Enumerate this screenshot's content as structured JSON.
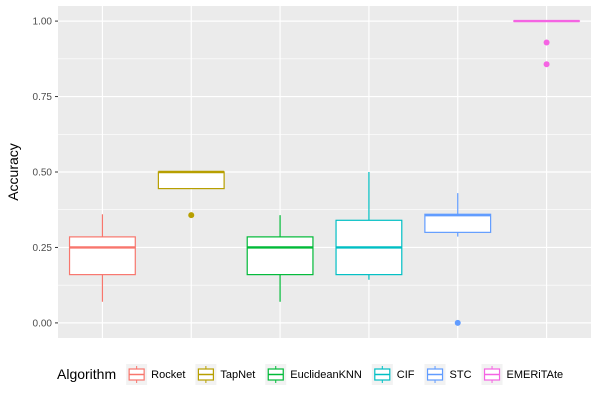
{
  "chart_data": {
    "type": "box",
    "title": "",
    "xlabel": "",
    "ylabel": "Accuracy",
    "ylim": [
      -0.05,
      1.05
    ],
    "yticks": [
      0.0,
      0.25,
      0.5,
      0.75,
      1.0
    ],
    "ytick_labels": [
      "0.00",
      "0.25",
      "0.50",
      "0.75",
      "1.00"
    ],
    "grid": true,
    "legend": {
      "title": "Algorithm",
      "position": "bottom"
    },
    "series": [
      {
        "name": "Rocket",
        "color": "#F8766D",
        "whisker_low": 0.07,
        "q1": 0.16,
        "median": 0.25,
        "q3": 0.285,
        "whisker_high": 0.36,
        "outliers": []
      },
      {
        "name": "TapNet",
        "color": "#B79F00",
        "whisker_low": 0.445,
        "q1": 0.445,
        "median": 0.5,
        "q3": 0.5,
        "whisker_high": 0.5,
        "outliers": [
          0.357
        ]
      },
      {
        "name": "EuclideanKNN",
        "color": "#00BA38",
        "whisker_low": 0.07,
        "q1": 0.16,
        "median": 0.25,
        "q3": 0.285,
        "whisker_high": 0.357,
        "outliers": []
      },
      {
        "name": "CIF",
        "color": "#00BFC4",
        "whisker_low": 0.143,
        "q1": 0.16,
        "median": 0.25,
        "q3": 0.34,
        "whisker_high": 0.5,
        "outliers": []
      },
      {
        "name": "STC",
        "color": "#619CFF",
        "whisker_low": 0.286,
        "q1": 0.3,
        "median": 0.357,
        "q3": 0.36,
        "whisker_high": 0.43,
        "outliers": [
          0.0
        ]
      },
      {
        "name": "EMERiTAte",
        "color": "#F564E3",
        "whisker_low": 1.0,
        "q1": 1.0,
        "median": 1.0,
        "q3": 1.0,
        "whisker_high": 1.0,
        "outliers": [
          0.929,
          0.857
        ]
      }
    ]
  }
}
